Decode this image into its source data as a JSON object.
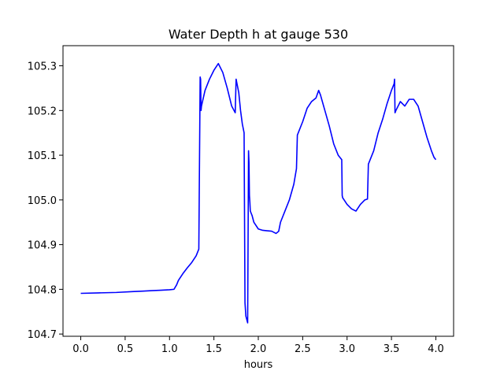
{
  "chart_data": {
    "type": "line",
    "title": "Water Depth h at gauge 530",
    "xlabel": "hours",
    "ylabel": "",
    "xlim": [
      -0.2,
      4.2
    ],
    "ylim": [
      104.695,
      105.345
    ],
    "xticks": [
      0.0,
      0.5,
      1.0,
      1.5,
      2.0,
      2.5,
      3.0,
      3.5,
      4.0
    ],
    "xtick_labels": [
      "0.0",
      "0.5",
      "1.0",
      "1.5",
      "2.0",
      "2.5",
      "3.0",
      "3.5",
      "4.0"
    ],
    "yticks": [
      104.7,
      104.8,
      104.9,
      105.0,
      105.1,
      105.2,
      105.3
    ],
    "ytick_labels": [
      "104.7",
      "104.8",
      "104.9",
      "105.0",
      "105.1",
      "105.2",
      "105.3"
    ],
    "grid": false,
    "series": [
      {
        "color": "#0000ff",
        "x": [
          0.0,
          0.2,
          0.4,
          0.6,
          0.7,
          0.8,
          0.9,
          1.0,
          1.05,
          1.08,
          1.1,
          1.15,
          1.2,
          1.25,
          1.3,
          1.33,
          1.345,
          1.35,
          1.355,
          1.36,
          1.4,
          1.45,
          1.5,
          1.55,
          1.6,
          1.65,
          1.7,
          1.74,
          1.75,
          1.78,
          1.8,
          1.82,
          1.84,
          1.85,
          1.86,
          1.88,
          1.89,
          1.895,
          1.9,
          1.905,
          1.91,
          1.92,
          1.93,
          1.95,
          2.0,
          2.05,
          2.1,
          2.15,
          2.2,
          2.23,
          2.25,
          2.3,
          2.35,
          2.4,
          2.43,
          2.44,
          2.45,
          2.5,
          2.55,
          2.6,
          2.65,
          2.68,
          2.7,
          2.75,
          2.8,
          2.85,
          2.9,
          2.94,
          2.945,
          2.95,
          3.0,
          3.05,
          3.1,
          3.15,
          3.2,
          3.23,
          3.24,
          3.3,
          3.35,
          3.4,
          3.45,
          3.5,
          3.53,
          3.535,
          3.54,
          3.55,
          3.6,
          3.65,
          3.7,
          3.75,
          3.8,
          3.85,
          3.9,
          3.95,
          3.98,
          4.0
        ],
        "y": [
          104.791,
          104.792,
          104.793,
          104.795,
          104.796,
          104.797,
          104.798,
          104.799,
          104.8,
          104.81,
          104.82,
          104.835,
          104.848,
          104.86,
          104.875,
          104.89,
          105.275,
          105.27,
          105.2,
          105.21,
          105.245,
          105.27,
          105.29,
          105.305,
          105.285,
          105.25,
          105.21,
          105.195,
          105.27,
          105.24,
          105.2,
          105.17,
          105.15,
          104.77,
          104.74,
          104.725,
          105.11,
          105.085,
          105.01,
          104.995,
          104.975,
          104.97,
          104.965,
          104.95,
          104.935,
          104.932,
          104.931,
          104.93,
          104.925,
          104.93,
          104.95,
          104.975,
          105.0,
          105.035,
          105.07,
          105.145,
          105.15,
          105.175,
          105.205,
          105.22,
          105.228,
          105.245,
          105.235,
          105.2,
          105.165,
          105.125,
          105.1,
          105.09,
          105.01,
          105.005,
          104.99,
          104.98,
          104.975,
          104.99,
          105.0,
          105.002,
          105.08,
          105.11,
          105.15,
          105.18,
          105.215,
          105.245,
          105.26,
          105.27,
          105.195,
          105.2,
          105.22,
          105.21,
          105.225,
          105.225,
          105.21,
          105.175,
          105.14,
          105.11,
          105.095,
          105.09
        ]
      }
    ]
  }
}
